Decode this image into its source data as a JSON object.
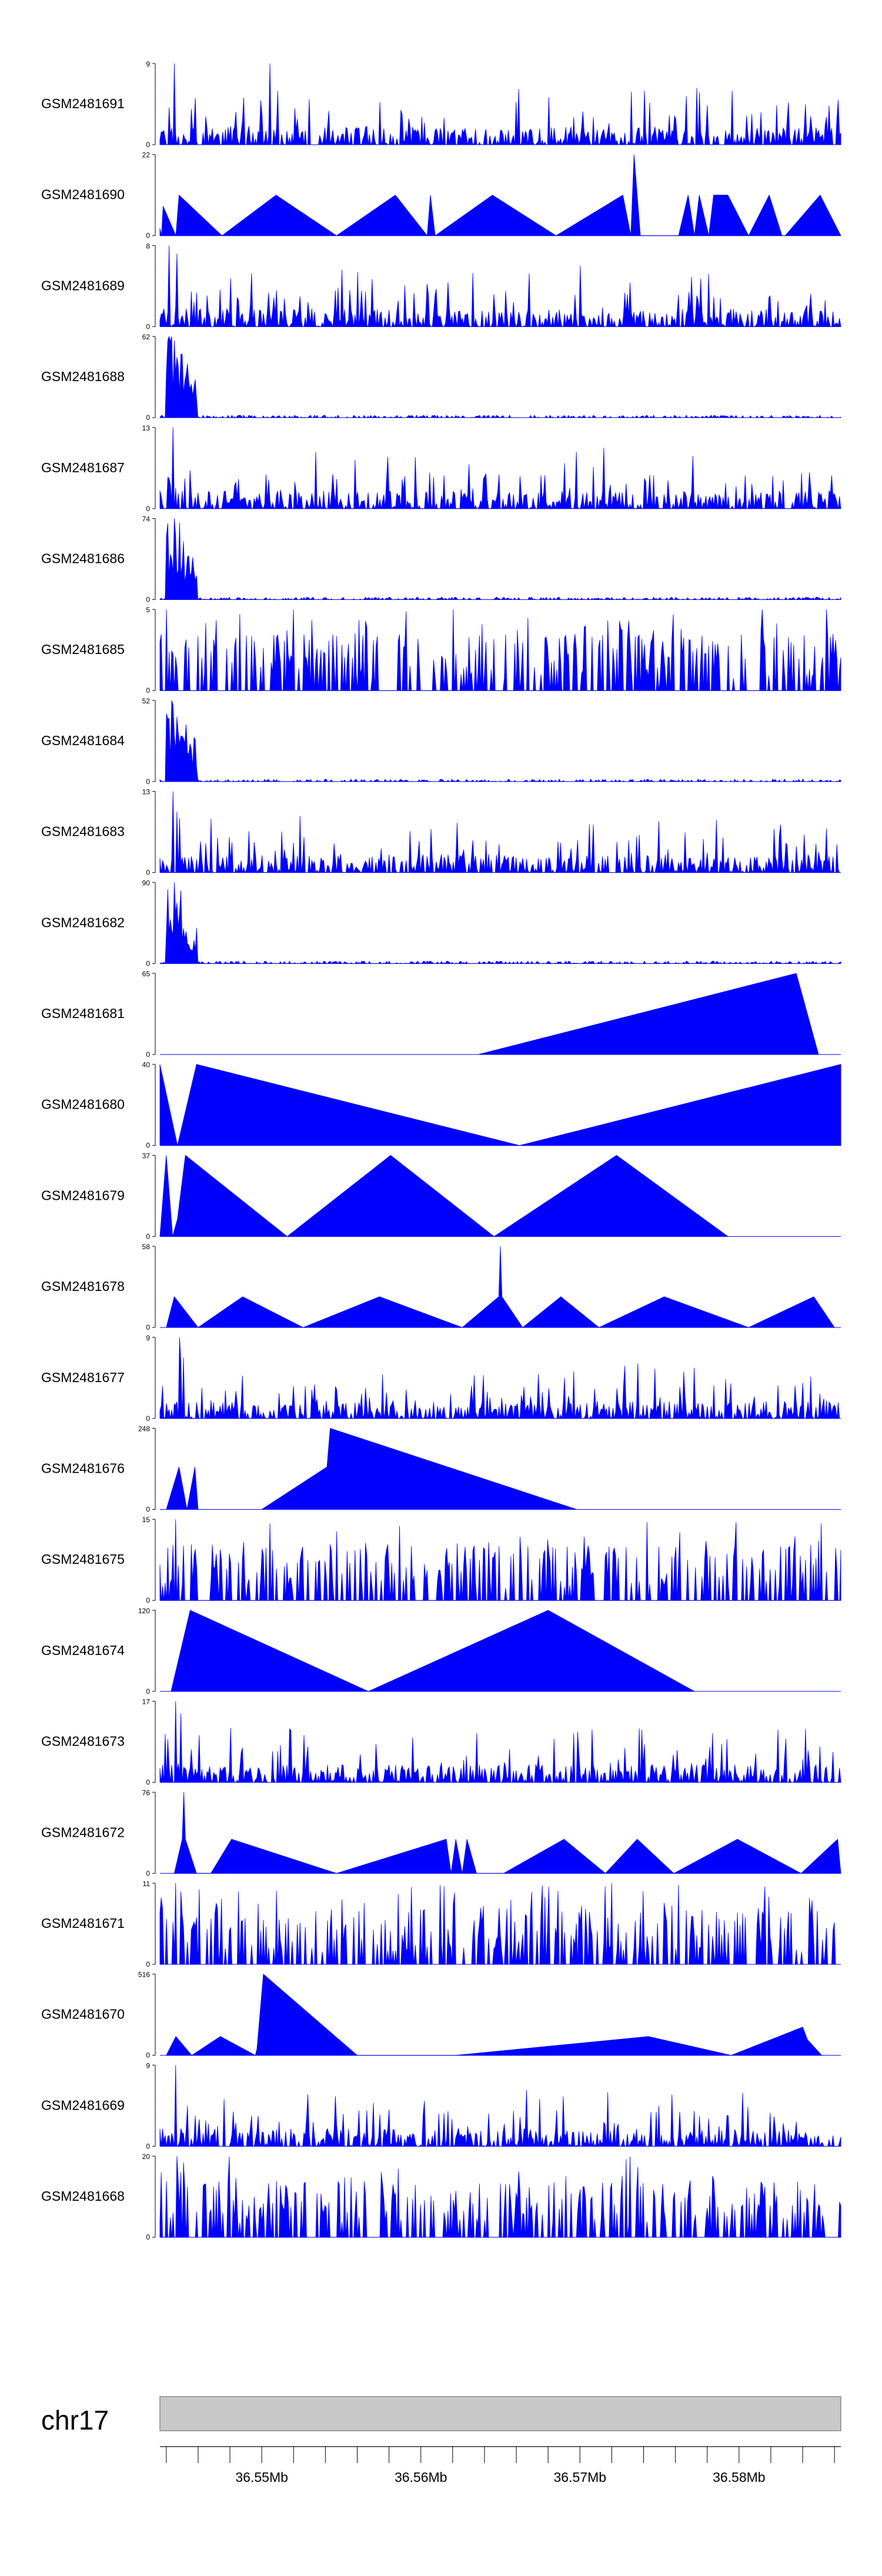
{
  "colors": {
    "fill": "#0000ff",
    "axis": "#000000",
    "ideogram": "#c8c8c8",
    "ideogram_border": "#888888"
  },
  "chart_data": {
    "type": "area",
    "grid": false,
    "legend": "none",
    "xlim": [
      36.5436,
      36.5864
    ],
    "tracks": [
      {
        "name": "GSM2481691",
        "ymax": "9",
        "ymin": "0",
        "style": "dense",
        "seed": 11,
        "peaks": [
          [
            36.5445,
            1.0
          ],
          [
            36.5505,
            1.0
          ],
          [
            36.5732,
            0.65
          ],
          [
            36.5862,
            0.55
          ]
        ]
      },
      {
        "name": "GSM2481690",
        "ymax": "22",
        "ymin": "0",
        "style": "points",
        "x": [
          36.5436,
          36.5437,
          36.5438,
          36.5446,
          36.5448,
          36.5475,
          36.5509,
          36.5547,
          36.5584,
          36.5604,
          36.5606,
          36.5609,
          36.5645,
          36.5685,
          36.5727,
          36.5732,
          36.5734,
          36.5738,
          36.5762,
          36.5768,
          36.5772,
          36.5775,
          36.5781,
          36.5784,
          36.5793,
          36.5806,
          36.5819,
          36.5827,
          36.5829,
          36.5851,
          36.5864
        ],
        "y": [
          2,
          0,
          8,
          0,
          11,
          0,
          11,
          0,
          11,
          0,
          11,
          0,
          11,
          0,
          11,
          0,
          22,
          0,
          0,
          11,
          0,
          11,
          0,
          11,
          11,
          0,
          11,
          0,
          0,
          11,
          0
        ]
      },
      {
        "name": "GSM2481689",
        "ymax": "8",
        "ymin": "0",
        "style": "dense",
        "seed": 23,
        "peaks": [
          [
            36.5442,
            1.0
          ],
          [
            36.5447,
            0.9
          ],
          [
            36.555,
            0.7
          ],
          [
            36.57,
            0.75
          ]
        ]
      },
      {
        "name": "GSM2481688",
        "ymax": "62",
        "ymin": "0",
        "style": "early",
        "seed": 31,
        "peaks": [
          [
            36.5443,
            1.0
          ],
          [
            36.5445,
            0.95
          ]
        ]
      },
      {
        "name": "GSM2481687",
        "ymax": "13",
        "ymin": "0",
        "style": "dense",
        "seed": 41,
        "peaks": [
          [
            36.5444,
            1.0
          ],
          [
            36.5559,
            0.6
          ],
          [
            36.5715,
            0.75
          ],
          [
            36.5828,
            0.35
          ]
        ]
      },
      {
        "name": "GSM2481686",
        "ymax": "74",
        "ymin": "0",
        "style": "early",
        "seed": 53,
        "peaks": [
          [
            36.5445,
            1.0
          ],
          [
            36.5448,
            0.95
          ]
        ]
      },
      {
        "name": "GSM2481685",
        "ymax": "5",
        "ymin": "0",
        "style": "spiky",
        "seed": 61,
        "peaks": [
          [
            36.544,
            1.0
          ],
          [
            36.552,
            1.0
          ],
          [
            36.562,
            1.0
          ],
          [
            36.5815,
            1.0
          ],
          [
            36.5855,
            1.0
          ]
        ]
      },
      {
        "name": "GSM2481684",
        "ymax": "52",
        "ymin": "0",
        "style": "early",
        "seed": 71,
        "peaks": [
          [
            36.5443,
            1.0
          ],
          [
            36.5447,
            0.8
          ]
        ]
      },
      {
        "name": "GSM2481683",
        "ymax": "13",
        "ymin": "0",
        "style": "dense",
        "seed": 83,
        "peaks": [
          [
            36.5444,
            1.0
          ],
          [
            36.5447,
            0.75
          ],
          [
            36.5825,
            0.45
          ]
        ]
      },
      {
        "name": "GSM2481682",
        "ymax": "90",
        "ymin": "0",
        "style": "early",
        "seed": 97,
        "peaks": [
          [
            36.5445,
            1.0
          ],
          [
            36.5449,
            0.9
          ]
        ]
      },
      {
        "name": "GSM2481681",
        "ymax": "65",
        "ymin": "0",
        "style": "points",
        "x": [
          36.5436,
          36.5636,
          36.5836,
          36.585
        ],
        "y": [
          0,
          0,
          65,
          0
        ]
      },
      {
        "name": "GSM2481680",
        "ymax": "40",
        "ymin": "0",
        "style": "points",
        "x": [
          36.5436,
          36.5447,
          36.5459,
          36.5662,
          36.5864
        ],
        "y": [
          40,
          0,
          40,
          0,
          40
        ]
      },
      {
        "name": "GSM2481679",
        "ymax": "37",
        "ymin": "0",
        "style": "points",
        "x": [
          36.5436,
          36.544,
          36.5444,
          36.5447,
          36.5452,
          36.5516,
          36.5581,
          36.5646,
          36.5723,
          36.5793
        ],
        "y": [
          0,
          37,
          0,
          8,
          37,
          0,
          37,
          0,
          37,
          0
        ]
      },
      {
        "name": "GSM2481678",
        "ymax": "58",
        "ymin": "0",
        "style": "points",
        "x": [
          36.544,
          36.5445,
          36.546,
          36.5488,
          36.5526,
          36.5574,
          36.5626,
          36.5649,
          36.565,
          36.5651,
          36.5664,
          36.5688,
          36.5712,
          36.5753,
          36.5806,
          36.5847,
          36.586
        ],
        "y": [
          0,
          22,
          0,
          22,
          0,
          22,
          0,
          22,
          58,
          22,
          0,
          22,
          0,
          22,
          0,
          22,
          0
        ]
      },
      {
        "name": "GSM2481677",
        "ymax": "9",
        "ymin": "0",
        "style": "dense",
        "seed": 101,
        "peaks": [
          [
            36.5448,
            1.0
          ],
          [
            36.5451,
            0.75
          ],
          [
            36.569,
            0.5
          ]
        ]
      },
      {
        "name": "GSM2481676",
        "ymax": "248",
        "ymin": "0",
        "style": "points",
        "x": [
          36.544,
          36.5448,
          36.5453,
          36.5458,
          36.546,
          36.55,
          36.5541,
          36.5543,
          36.5698
        ],
        "y": [
          0,
          130,
          0,
          130,
          0,
          0,
          130,
          248,
          0
        ]
      },
      {
        "name": "GSM2481675",
        "ymax": "15",
        "ymin": "0",
        "style": "spiky",
        "seed": 113,
        "peaks": [
          [
            36.5446,
            1.0
          ],
          [
            36.5505,
            0.95
          ],
          [
            36.568,
            0.75
          ]
        ]
      },
      {
        "name": "GSM2481674",
        "ymax": "120",
        "ymin": "0",
        "style": "points",
        "x": [
          36.5443,
          36.5455,
          36.5567,
          36.568,
          36.5772
        ],
        "y": [
          0,
          120,
          0,
          120,
          0
        ]
      },
      {
        "name": "GSM2481673",
        "ymax": "17",
        "ymin": "0",
        "style": "dense",
        "seed": 127,
        "peaks": [
          [
            36.5446,
            1.0
          ],
          [
            36.5449,
            0.85
          ]
        ]
      },
      {
        "name": "GSM2481672",
        "ymax": "76",
        "ymin": "0",
        "style": "points",
        "x": [
          36.5445,
          36.545,
          36.5451,
          36.5452,
          36.5459,
          36.5468,
          36.5481,
          36.5547,
          36.5616,
          36.5619,
          36.5622,
          36.5626,
          36.5629,
          36.5635,
          36.5652,
          36.569,
          36.5716,
          36.5736,
          36.5759,
          36.5799,
          36.5839,
          36.5862,
          36.5864
        ],
        "y": [
          0,
          32,
          76,
          32,
          0,
          0,
          32,
          0,
          32,
          0,
          32,
          0,
          32,
          0,
          0,
          32,
          0,
          32,
          0,
          32,
          0,
          32,
          0
        ]
      },
      {
        "name": "GSM2481671",
        "ymax": "11",
        "ymin": "0",
        "style": "spiky",
        "seed": 139,
        "peaks": [
          [
            36.5446,
            1.0
          ],
          [
            36.572,
            1.0
          ],
          [
            36.574,
            0.9
          ]
        ]
      },
      {
        "name": "GSM2481670",
        "ymax": "516",
        "ymin": "0",
        "style": "points",
        "x": [
          36.544,
          36.5446,
          36.5456,
          36.5474,
          36.5496,
          36.5497,
          36.5501,
          36.556,
          36.5622,
          36.5743,
          36.5795,
          36.584,
          36.5843,
          36.5852
        ],
        "y": [
          0,
          120,
          0,
          120,
          0,
          40,
          516,
          0,
          0,
          120,
          0,
          180,
          100,
          0
        ]
      },
      {
        "name": "GSM2481669",
        "ymax": "9",
        "ymin": "0",
        "style": "dense",
        "seed": 151,
        "peaks": [
          [
            36.5446,
            1.0
          ],
          [
            36.575,
            0.5
          ]
        ]
      },
      {
        "name": "GSM2481668",
        "ymax": "20",
        "ymin": "0",
        "style": "spiky",
        "seed": 163,
        "peaks": [
          [
            36.5447,
            1.0
          ],
          [
            36.5449,
            0.8
          ]
        ]
      }
    ],
    "ideogram": {
      "chromosome": "chr17",
      "tick_labels": [
        {
          "value": 36.55,
          "label": "36.55Mb"
        },
        {
          "value": 36.56,
          "label": "36.56Mb"
        },
        {
          "value": 36.57,
          "label": "36.57Mb"
        },
        {
          "value": 36.58,
          "label": "36.58Mb"
        }
      ],
      "minor_tick_step": 0.002
    }
  }
}
